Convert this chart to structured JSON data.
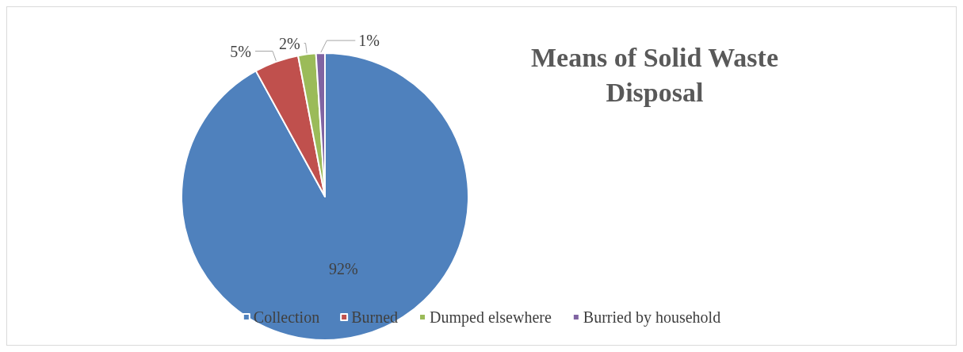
{
  "chart_data": {
    "type": "pie",
    "title": "Means of Solid Waste Disposal",
    "categories": [
      "Collection",
      "Burned",
      "Dumped elsewhere",
      "Burried by household"
    ],
    "values": [
      92,
      5,
      2,
      1
    ],
    "colors": [
      "#4f81bd",
      "#c0504d",
      "#9bbb59",
      "#8064a2"
    ],
    "value_labels": [
      "92%",
      "5%",
      "2%",
      "1%"
    ],
    "legend": "bottom"
  }
}
